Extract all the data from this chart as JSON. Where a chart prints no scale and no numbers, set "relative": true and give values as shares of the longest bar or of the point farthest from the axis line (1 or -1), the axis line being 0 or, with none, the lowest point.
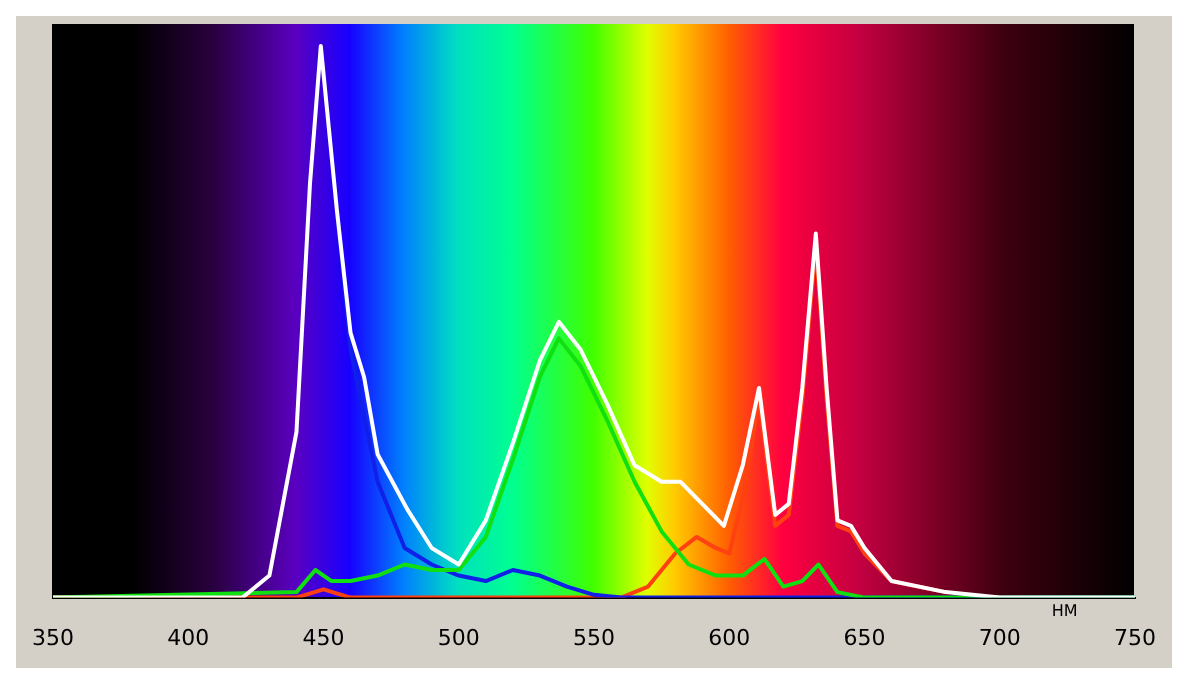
{
  "chart_data": {
    "type": "line",
    "xlabel": "НМ",
    "relative": true,
    "xlim": [
      350,
      750
    ],
    "xticks": [
      350,
      400,
      450,
      500,
      550,
      600,
      650,
      700,
      750
    ],
    "grid": false,
    "legend": false,
    "marker": "none",
    "line_style": "solid",
    "series": [
      {
        "color": "#ff4010",
        "x": [
          350,
          440,
          450,
          460,
          560,
          570,
          580,
          588,
          595,
          600,
          605,
          611,
          617,
          622,
          627,
          632,
          636,
          640,
          645,
          650,
          660,
          680
        ],
        "values": [
          0,
          0,
          0.015,
          0,
          0,
          0.02,
          0.08,
          0.11,
          0.09,
          0.08,
          0.18,
          0.36,
          0.13,
          0.15,
          0.36,
          0.64,
          0.36,
          0.13,
          0.12,
          0.08,
          0.03,
          0.01
        ]
      },
      {
        "color": "#1020e8",
        "x": [
          455,
          460,
          465,
          470,
          480,
          490,
          500,
          510,
          520,
          530,
          540,
          550,
          560,
          750
        ],
        "values": [
          0.7,
          0.45,
          0.33,
          0.21,
          0.09,
          0.06,
          0.04,
          0.03,
          0.05,
          0.04,
          0.02,
          0.005,
          0,
          0
        ]
      },
      {
        "color": "#10e010",
        "x": [
          350,
          440,
          447,
          453,
          460,
          470,
          480,
          490,
          500,
          510,
          520,
          530,
          537,
          545,
          555,
          565,
          575,
          585,
          595,
          605,
          613,
          620,
          627,
          633,
          640,
          650,
          750
        ],
        "values": [
          0,
          0.01,
          0.05,
          0.03,
          0.03,
          0.04,
          0.06,
          0.05,
          0.05,
          0.11,
          0.25,
          0.4,
          0.47,
          0.42,
          0.32,
          0.21,
          0.12,
          0.06,
          0.04,
          0.04,
          0.07,
          0.02,
          0.03,
          0.06,
          0.01,
          0,
          0
        ]
      },
      {
        "color": "#ffffff",
        "x": [
          350,
          420,
          430,
          440,
          445,
          449,
          455,
          460,
          465,
          470,
          481,
          490,
          500,
          510,
          520,
          530,
          537,
          545,
          555,
          565,
          575,
          582,
          590,
          598,
          605,
          611,
          617,
          622,
          627,
          632,
          636,
          640,
          645,
          650,
          660,
          680,
          700,
          750
        ],
        "values": [
          0,
          0,
          0.04,
          0.3,
          0.75,
          1.0,
          0.7,
          0.48,
          0.4,
          0.26,
          0.16,
          0.09,
          0.06,
          0.14,
          0.28,
          0.43,
          0.5,
          0.45,
          0.35,
          0.24,
          0.21,
          0.21,
          0.17,
          0.13,
          0.24,
          0.38,
          0.15,
          0.17,
          0.38,
          0.66,
          0.38,
          0.14,
          0.13,
          0.09,
          0.03,
          0.01,
          0,
          0
        ]
      }
    ]
  }
}
